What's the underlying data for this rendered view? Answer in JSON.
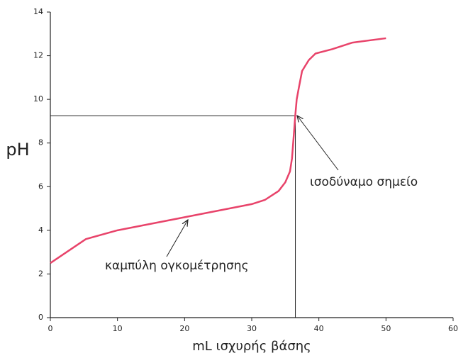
{
  "chart_data": {
    "type": "line",
    "xlabel": "mL ισχυρής βάσης",
    "ylabel": "pH",
    "x": [
      0,
      5.3,
      10,
      15,
      20,
      25,
      30,
      32,
      34,
      35,
      35.7,
      36,
      36.3,
      36.5,
      36.7,
      37,
      37.5,
      38.5,
      39.5,
      42,
      45,
      50
    ],
    "series": [
      {
        "color": "#e8436a",
        "values": [
          2.5,
          3.6,
          4.0,
          4.3,
          4.6,
          4.9,
          5.2,
          5.4,
          5.8,
          6.2,
          6.7,
          7.3,
          8.5,
          9.3,
          10.0,
          10.5,
          11.3,
          11.8,
          12.1,
          12.3,
          12.6,
          12.8
        ]
      }
    ],
    "equivalence_point": {
      "x": 36.5,
      "y": 9.25
    },
    "annotations": [
      "ισοδύναμο σημείο",
      "καμπύλη ογκομέτρησης"
    ],
    "xlim": [
      0,
      60
    ],
    "ylim": [
      0,
      14
    ],
    "xticks": [
      0,
      10,
      20,
      30,
      40,
      50,
      60
    ],
    "yticks": [
      0,
      2,
      4,
      6,
      8,
      10,
      12,
      14
    ],
    "grid": false
  }
}
